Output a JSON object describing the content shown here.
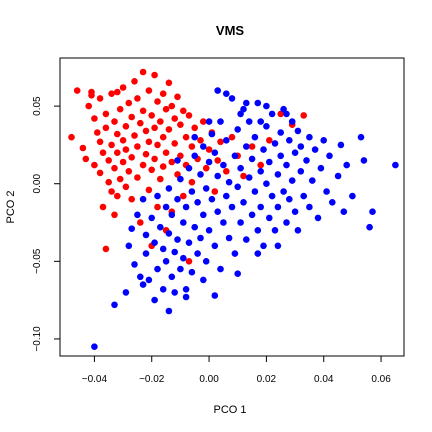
{
  "chart_data": {
    "type": "scatter",
    "title": "VMS",
    "xlabel": "PCO 1",
    "ylabel": "PCO 2",
    "xlim": [
      -0.052,
      0.068
    ],
    "ylim": [
      -0.111,
      0.081
    ],
    "x_ticks": [
      -0.04,
      -0.02,
      0.0,
      0.02,
      0.04,
      0.06
    ],
    "x_tick_labels": [
      "−0.04",
      "−0.02",
      "0.00",
      "0.02",
      "0.04",
      "0.06"
    ],
    "y_ticks": [
      -0.1,
      -0.05,
      0.0,
      0.05
    ],
    "y_tick_labels": [
      "−0.10",
      "−0.05",
      "0.00",
      "0.05"
    ],
    "grid": false,
    "legend": "none",
    "colors": {
      "red": "#ff0000",
      "blue": "#0000ff"
    },
    "series": [
      {
        "color": "#ff0000",
        "points": [
          [
            -0.048,
            0.03
          ],
          [
            -0.044,
            0.023
          ],
          [
            -0.043,
            0.016
          ],
          [
            -0.042,
            0.05
          ],
          [
            -0.041,
            0.057
          ],
          [
            -0.04,
            0.042
          ],
          [
            -0.04,
            0.012
          ],
          [
            -0.039,
            0.033
          ],
          [
            -0.038,
            0.027
          ],
          [
            -0.038,
            0.007
          ],
          [
            -0.037,
            0.02
          ],
          [
            -0.037,
            -0.015
          ],
          [
            -0.036,
            0.045
          ],
          [
            -0.036,
            0.036
          ],
          [
            -0.035,
            0.015
          ],
          [
            -0.035,
            0.001
          ],
          [
            -0.034,
            0.058
          ],
          [
            -0.034,
            0.025
          ],
          [
            -0.034,
            -0.005
          ],
          [
            -0.033,
            0.04
          ],
          [
            -0.033,
            0.01
          ],
          [
            -0.032,
            0.032
          ],
          [
            -0.032,
            0.02
          ],
          [
            -0.032,
            -0.008
          ],
          [
            -0.031,
            0.048
          ],
          [
            -0.031,
            0.003
          ],
          [
            -0.03,
            0.062
          ],
          [
            -0.03,
            0.028
          ],
          [
            -0.03,
            0.014
          ],
          [
            -0.029,
            0.037
          ],
          [
            -0.029,
            0.022
          ],
          [
            -0.029,
            -0.002
          ],
          [
            -0.028,
            0.052
          ],
          [
            -0.028,
            0.008
          ],
          [
            -0.027,
            0.043
          ],
          [
            -0.027,
            0.017
          ],
          [
            -0.027,
            -0.01
          ],
          [
            -0.026,
            0.066
          ],
          [
            -0.026,
            0.031
          ],
          [
            -0.025,
            0.055
          ],
          [
            -0.025,
            0.024
          ],
          [
            -0.025,
            0.004
          ],
          [
            -0.024,
            0.039
          ],
          [
            -0.024,
            -0.025
          ],
          [
            -0.023,
            0.072
          ],
          [
            -0.023,
            0.047
          ],
          [
            -0.023,
            0.012
          ],
          [
            -0.022,
            0.034
          ],
          [
            -0.022,
            0.019
          ],
          [
            -0.021,
            0.06
          ],
          [
            -0.021,
            0.027
          ],
          [
            -0.021,
            -0.004
          ],
          [
            -0.02,
            0.044
          ],
          [
            -0.02,
            0.009
          ],
          [
            -0.019,
            0.07
          ],
          [
            -0.019,
            0.036
          ],
          [
            -0.019,
            0.016
          ],
          [
            -0.018,
            0.053
          ],
          [
            -0.018,
            0.025
          ],
          [
            -0.018,
            -0.015
          ],
          [
            -0.017,
            0.04
          ],
          [
            -0.017,
            0.003
          ],
          [
            -0.016,
            0.058
          ],
          [
            -0.016,
            0.03
          ],
          [
            -0.016,
            0.011
          ],
          [
            -0.015,
            0.048
          ],
          [
            -0.015,
            0.02
          ],
          [
            -0.015,
            -0.03
          ],
          [
            -0.014,
            0.065
          ],
          [
            -0.014,
            0.035
          ],
          [
            -0.013,
            0.05
          ],
          [
            -0.013,
            0.014
          ],
          [
            -0.013,
            -0.018
          ],
          [
            -0.012,
            0.042
          ],
          [
            -0.012,
            0.026
          ],
          [
            -0.011,
            0.056
          ],
          [
            -0.011,
            0.006
          ],
          [
            -0.01,
            0.038
          ],
          [
            -0.01,
            0.018
          ],
          [
            -0.009,
            0.047
          ],
          [
            -0.009,
            -0.008
          ],
          [
            -0.008,
            0.03
          ],
          [
            -0.008,
            0.012
          ],
          [
            -0.007,
            0.044
          ],
          [
            -0.006,
            0.024
          ],
          [
            -0.006,
            0.001
          ],
          [
            -0.005,
            0.036
          ],
          [
            -0.004,
            0.016
          ],
          [
            -0.003,
            0.028
          ],
          [
            -0.002,
            0.04
          ],
          [
            -0.001,
            0.01
          ],
          [
            0.0,
            0.022
          ],
          [
            0.001,
            0.033
          ],
          [
            0.002,
            -0.005
          ],
          [
            0.003,
            0.015
          ],
          [
            0.004,
            0.027
          ],
          [
            0.006,
            0.008
          ],
          [
            0.008,
            0.03
          ],
          [
            0.01,
            0.018
          ],
          [
            0.012,
            0.005
          ],
          [
            0.015,
            0.024
          ],
          [
            0.018,
            0.012
          ],
          [
            0.021,
            0.028
          ],
          [
            0.025,
            0.045
          ],
          [
            0.029,
            0.038
          ],
          [
            0.033,
            0.044
          ],
          [
            -0.036,
            -0.042
          ],
          [
            -0.033,
            -0.02
          ],
          [
            -0.02,
            -0.04
          ],
          [
            -0.007,
            -0.05
          ],
          [
            -0.046,
            0.06
          ],
          [
            -0.041,
            0.059
          ],
          [
            -0.038,
            0.055
          ],
          [
            -0.032,
            0.059
          ]
        ]
      },
      {
        "color": "#0000ff",
        "points": [
          [
            -0.04,
            -0.105
          ],
          [
            -0.033,
            -0.078
          ],
          [
            -0.029,
            -0.07
          ],
          [
            -0.028,
            -0.04
          ],
          [
            -0.027,
            -0.029
          ],
          [
            -0.026,
            -0.052
          ],
          [
            -0.025,
            -0.02
          ],
          [
            -0.024,
            -0.06
          ],
          [
            -0.023,
            -0.01
          ],
          [
            -0.022,
            -0.033
          ],
          [
            -0.022,
            -0.045
          ],
          [
            -0.021,
            -0.062
          ],
          [
            -0.02,
            -0.022
          ],
          [
            -0.019,
            -0.075
          ],
          [
            -0.019,
            -0.038
          ],
          [
            -0.018,
            -0.008
          ],
          [
            -0.018,
            -0.055
          ],
          [
            -0.017,
            -0.028
          ],
          [
            -0.016,
            -0.068
          ],
          [
            -0.016,
            -0.042
          ],
          [
            -0.015,
            -0.015
          ],
          [
            -0.015,
            -0.05
          ],
          [
            -0.014,
            -0.003
          ],
          [
            -0.014,
            -0.032
          ],
          [
            -0.013,
            -0.06
          ],
          [
            -0.013,
            -0.02
          ],
          [
            -0.012,
            -0.044
          ],
          [
            -0.012,
            -0.07
          ],
          [
            -0.011,
            -0.01
          ],
          [
            -0.011,
            -0.036
          ],
          [
            -0.01,
            -0.055
          ],
          [
            -0.01,
            0.003
          ],
          [
            -0.009,
            -0.025
          ],
          [
            -0.009,
            -0.048
          ],
          [
            -0.008,
            -0.015
          ],
          [
            -0.008,
            -0.068
          ],
          [
            -0.007,
            0.01
          ],
          [
            -0.007,
            -0.038
          ],
          [
            -0.006,
            -0.005
          ],
          [
            -0.006,
            -0.057
          ],
          [
            -0.005,
            -0.028
          ],
          [
            -0.005,
            0.018
          ],
          [
            -0.004,
            -0.045
          ],
          [
            -0.004,
            -0.012
          ],
          [
            -0.003,
            0.006
          ],
          [
            -0.003,
            -0.035
          ],
          [
            -0.002,
            -0.02
          ],
          [
            -0.002,
            0.024
          ],
          [
            -0.001,
            -0.05
          ],
          [
            -0.001,
            -0.003
          ],
          [
            0.0,
            0.014
          ],
          [
            0.0,
            -0.03
          ],
          [
            0.001,
            0.032
          ],
          [
            0.001,
            -0.01
          ],
          [
            0.002,
            -0.04
          ],
          [
            0.002,
            0.02
          ],
          [
            0.003,
            -0.018
          ],
          [
            0.003,
            0.005
          ],
          [
            0.004,
            -0.055
          ],
          [
            0.004,
            0.04
          ],
          [
            0.005,
            -0.025
          ],
          [
            0.005,
            0.012
          ],
          [
            0.006,
            -0.008
          ],
          [
            0.006,
            0.028
          ],
          [
            0.007,
            -0.035
          ],
          [
            0.007,
            0.001
          ],
          [
            0.008,
            0.055
          ],
          [
            0.008,
            -0.015
          ],
          [
            0.009,
            0.018
          ],
          [
            0.009,
            -0.045
          ],
          [
            0.01,
            0.035
          ],
          [
            0.01,
            -0.002
          ],
          [
            0.011,
            -0.025
          ],
          [
            0.011,
            0.01
          ],
          [
            0.012,
            0.048
          ],
          [
            0.012,
            -0.012
          ],
          [
            0.013,
            0.024
          ],
          [
            0.013,
            -0.036
          ],
          [
            0.014,
            0.004
          ],
          [
            0.014,
            0.04
          ],
          [
            0.015,
            -0.02
          ],
          [
            0.015,
            0.016
          ],
          [
            0.016,
            -0.005
          ],
          [
            0.016,
            0.03
          ],
          [
            0.017,
            -0.03
          ],
          [
            0.017,
            0.052
          ],
          [
            0.018,
            0.008
          ],
          [
            0.018,
            -0.015
          ],
          [
            0.019,
            0.022
          ],
          [
            0.019,
            -0.04
          ],
          [
            0.02,
            0.0
          ],
          [
            0.02,
            0.037
          ],
          [
            0.021,
            -0.022
          ],
          [
            0.021,
            0.014
          ],
          [
            0.022,
            -0.008
          ],
          [
            0.022,
            0.045
          ],
          [
            0.023,
            0.026
          ],
          [
            0.023,
            -0.03
          ],
          [
            0.024,
            0.006
          ],
          [
            0.024,
            -0.015
          ],
          [
            0.025,
            0.033
          ],
          [
            0.025,
            0.018
          ],
          [
            0.026,
            -0.005
          ],
          [
            0.026,
            0.048
          ],
          [
            0.027,
            -0.025
          ],
          [
            0.027,
            0.012
          ],
          [
            0.028,
            0.028
          ],
          [
            0.028,
            -0.01
          ],
          [
            0.029,
            0.04
          ],
          [
            0.029,
            0.002
          ],
          [
            0.03,
            -0.018
          ],
          [
            0.03,
            0.02
          ],
          [
            0.031,
            0.034
          ],
          [
            0.031,
            -0.03
          ],
          [
            0.032,
            0.008
          ],
          [
            0.032,
            0.024
          ],
          [
            0.033,
            -0.008
          ],
          [
            0.034,
            0.015
          ],
          [
            0.035,
            0.03
          ],
          [
            0.035,
            -0.015
          ],
          [
            0.036,
            0.002
          ],
          [
            0.037,
            0.022
          ],
          [
            0.038,
            -0.022
          ],
          [
            0.039,
            0.01
          ],
          [
            0.04,
            0.028
          ],
          [
            0.041,
            -0.005
          ],
          [
            0.042,
            0.018
          ],
          [
            0.043,
            -0.012
          ],
          [
            0.045,
            0.005
          ],
          [
            0.046,
            0.025
          ],
          [
            0.047,
            -0.018
          ],
          [
            0.048,
            0.012
          ],
          [
            0.05,
            -0.008
          ],
          [
            0.053,
            0.03
          ],
          [
            0.054,
            0.015
          ],
          [
            0.056,
            -0.028
          ],
          [
            0.057,
            -0.018
          ],
          [
            0.065,
            0.012
          ],
          [
            0.003,
            0.06
          ],
          [
            0.013,
            0.052
          ],
          [
            0.02,
            0.05
          ],
          [
            0.027,
            0.045
          ],
          [
            0.006,
            0.058
          ],
          [
            -0.002,
            -0.062
          ],
          [
            0.002,
            -0.072
          ],
          [
            -0.008,
            -0.073
          ],
          [
            0.01,
            -0.058
          ],
          [
            -0.014,
            -0.082
          ],
          [
            0.017,
            -0.045
          ],
          [
            0.024,
            -0.04
          ],
          [
            -0.023,
            -0.065
          ],
          [
            -0.005,
            0.03
          ],
          [
            0.0,
            0.04
          ],
          [
            -0.011,
            0.015
          ],
          [
            0.011,
            0.045
          ],
          [
            0.018,
            0.04
          ]
        ]
      }
    ]
  }
}
